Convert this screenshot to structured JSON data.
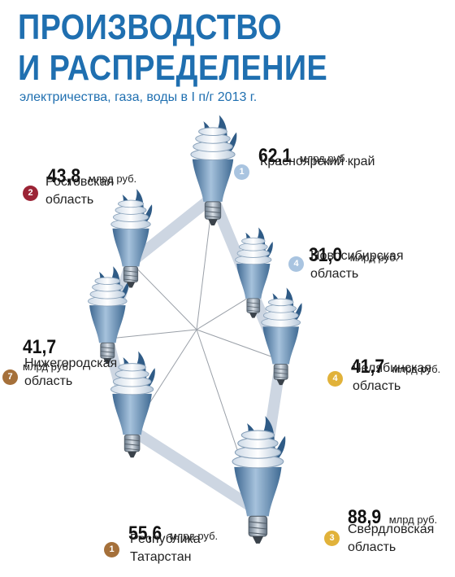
{
  "title_line1": "ПРОИЗВОДСТВО",
  "title_line2": "И РАСПРЕДЕЛЕНИЕ",
  "subtitle": "электричества, газа, воды в I п/г 2013 г.",
  "unit": "млрд руб.",
  "colors": {
    "title": "#1f6fb0",
    "band": "#cdd6e2",
    "spoke": "#9aa0a8",
    "bulb": "#5b84ad"
  },
  "chart_data": {
    "type": "radar",
    "title": "ПРОИЗВОДСТВО И РАСПРЕДЕЛЕНИЕ",
    "subtitle": "электричества, газа, воды в I п/г 2013 г.",
    "unit": "млрд руб.",
    "regions": [
      {
        "name": "Красноярский край",
        "value": 62.1,
        "value_label": "62,1",
        "rank": "1",
        "rank_color": "#a9c4e0"
      },
      {
        "name": "Новосибирская\nобласть",
        "value": 31.0,
        "value_label": "31,0",
        "rank": "4",
        "rank_color": "#a9c4e0"
      },
      {
        "name": "Челябинская\nобласть",
        "value": 41.7,
        "value_label": "41,7",
        "rank": "4",
        "rank_color": "#e1b23a"
      },
      {
        "name": "Свердловская\nобласть",
        "value": 88.9,
        "value_label": "88,9",
        "rank": "3",
        "rank_color": "#e1b23a"
      },
      {
        "name": "Республика\nТатарстан",
        "value": 55.6,
        "value_label": "55,6",
        "rank": "1",
        "rank_color": "#a5703a"
      },
      {
        "name": "Нижегородская\nобласть",
        "value": 41.7,
        "value_label": "41,7",
        "rank": "7",
        "rank_color": "#a5703a"
      },
      {
        "name": "Ростовская\nобласть",
        "value": 43.8,
        "value_label": "43,8",
        "rank": "2",
        "rank_color": "#9b2335"
      }
    ]
  }
}
